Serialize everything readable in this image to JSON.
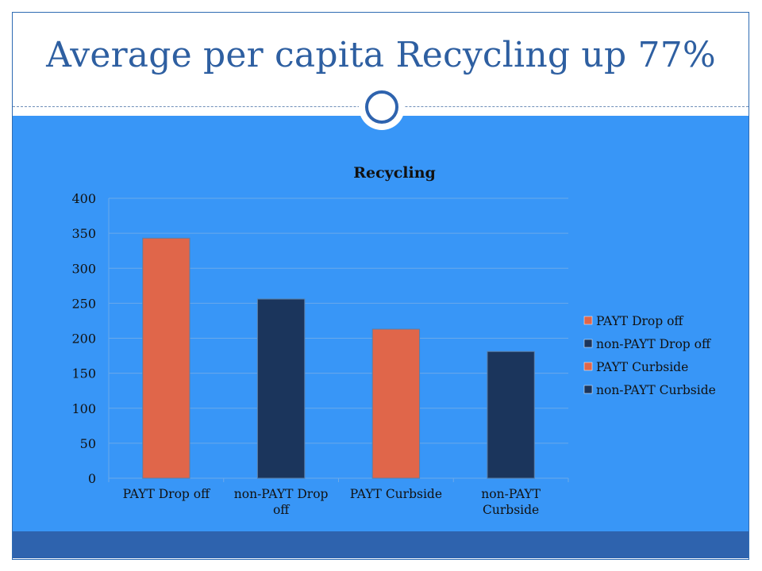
{
  "slide": {
    "title": "Average per capita Recycling up 77%"
  },
  "colors": {
    "background": "#3896f7",
    "title_text": "#2e5fa1",
    "footer": "#2e63ae",
    "payt": "#e0664a",
    "non_payt": "#1b355c"
  },
  "chart_data": {
    "type": "bar",
    "title": "Recycling",
    "xlabel": "",
    "ylabel": "",
    "categories": [
      "PAYT Drop off",
      "non-PAYT Drop off",
      "PAYT Curbside",
      "non-PAYT Curbside"
    ],
    "values": [
      343,
      256,
      213,
      181
    ],
    "bar_colors": [
      "#e0664a",
      "#1b355c",
      "#e0664a",
      "#1b355c"
    ],
    "ylim": [
      0,
      400
    ],
    "yticks": [
      0,
      50,
      100,
      150,
      200,
      250,
      300,
      350,
      400
    ],
    "grid": true,
    "legend": {
      "position": "right",
      "entries": [
        {
          "label": "PAYT Drop off",
          "color": "#e0664a"
        },
        {
          "label": "non-PAYT Drop off",
          "color": "#1b355c"
        },
        {
          "label": "PAYT Curbside",
          "color": "#e0664a"
        },
        {
          "label": "non-PAYT Curbside",
          "color": "#1b355c"
        }
      ]
    }
  }
}
